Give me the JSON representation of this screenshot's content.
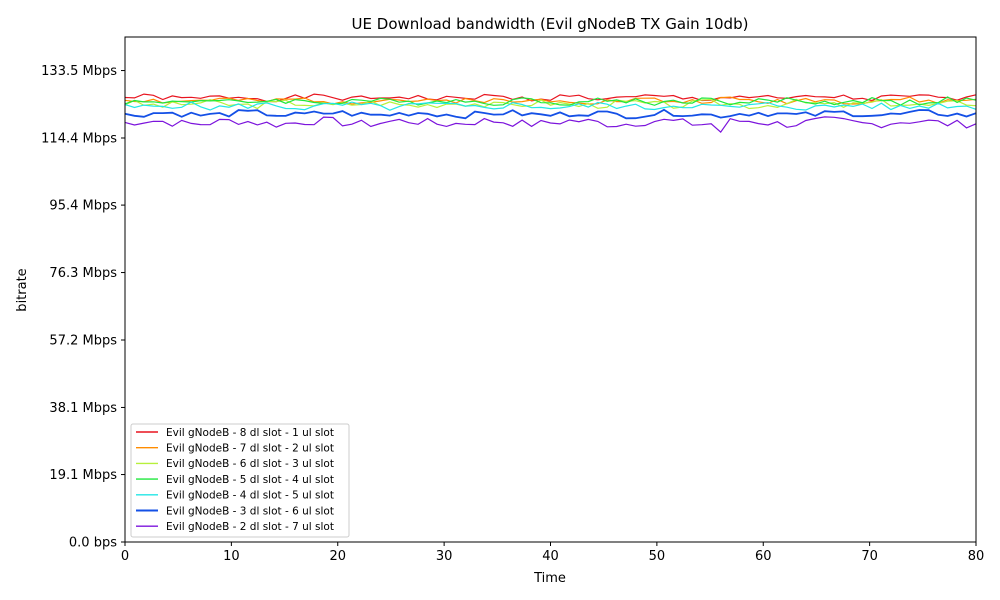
{
  "chart_data": {
    "type": "line",
    "title": "UE Download bandwidth (Evil gNodeB TX Gain 10db)",
    "xlabel": "Time",
    "ylabel": "bitrate",
    "xlim": [
      0,
      80
    ],
    "ylim_mbps": [
      0,
      143
    ],
    "x_ticks": [
      "0",
      "10",
      "20",
      "30",
      "40",
      "50",
      "60",
      "70",
      "80"
    ],
    "y_ticks": [
      {
        "value": 0,
        "label": "0.0 bps"
      },
      {
        "value": 19.1,
        "label": "19.1 Mbps"
      },
      {
        "value": 38.1,
        "label": "38.1 Mbps"
      },
      {
        "value": 57.2,
        "label": "57.2 Mbps"
      },
      {
        "value": 76.3,
        "label": "76.3 Mbps"
      },
      {
        "value": 95.4,
        "label": "95.4 Mbps"
      },
      {
        "value": 114.4,
        "label": "114.4 Mbps"
      },
      {
        "value": 133.5,
        "label": "133.5 Mbps"
      }
    ],
    "grid": false,
    "legend_position": "lower-left",
    "series": [
      {
        "name": "Evil gNodeB - 8 dl slot - 1 ul slot",
        "color": "#e8141f",
        "base": 125.8,
        "amp": 0.8
      },
      {
        "name": "Evil gNodeB - 7 dl slot - 2 ul slot",
        "color": "#ff8c00",
        "base": 125.0,
        "amp": 0.8
      },
      {
        "name": "Evil gNodeB - 6 dl slot - 3 ul slot",
        "color": "#b7f03c",
        "base": 124.0,
        "amp": 1.0
      },
      {
        "name": "Evil gNodeB - 5 dl slot - 4 ul slot",
        "color": "#1ee83c",
        "base": 124.8,
        "amp": 0.9
      },
      {
        "name": "Evil gNodeB - 4 dl slot - 5 ul slot",
        "color": "#22e6e6",
        "base": 123.4,
        "amp": 1.0
      },
      {
        "name": "Evil gNodeB - 3 dl slot - 6 ul slot",
        "color": "#1450e6",
        "base": 121.2,
        "amp": 0.9
      },
      {
        "name": "Evil gNodeB - 2 dl slot - 7 ul slot",
        "color": "#7c14dc",
        "base": 118.8,
        "amp": 1.2
      }
    ]
  }
}
